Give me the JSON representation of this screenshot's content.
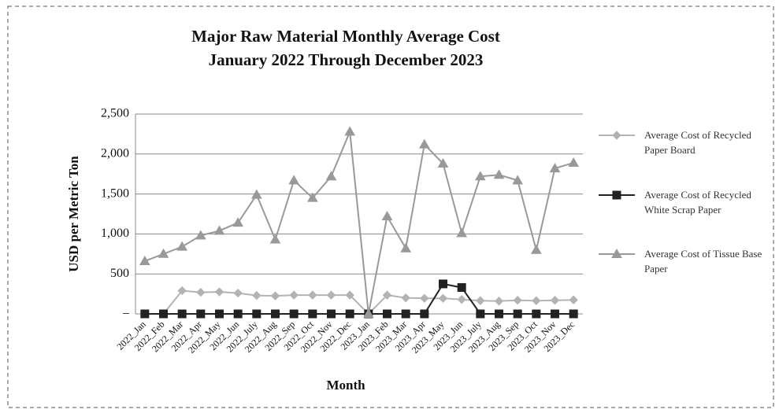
{
  "chart_data": {
    "type": "line",
    "title": "Major Raw Material Monthly Average Cost",
    "subtitle": "January 2022 Through December 2023",
    "x_label": "Month",
    "y_label": "USD per Metric Ton",
    "categories": [
      "2022_Jan",
      "2022_Feb",
      "2022_Mar",
      "2022_Apr",
      "2022_May",
      "2022_Jun",
      "2022_July",
      "2022_Aug",
      "2022_Sep",
      "2022_Oct",
      "2022_Nov",
      "2022_Dec",
      "2023_Jan",
      "2023_Feb",
      "2023_Mar",
      "2023_Apr",
      "2023_May",
      "2023_Jun",
      "2023_July",
      "2023_Aug",
      "2023_Sep",
      "2023_Oct",
      "2023_Nov",
      "2023_Dec"
    ],
    "series": [
      {
        "name": "Average Cost of Recycled Paper Board",
        "color": "#b3b3b3",
        "marker": "diamond",
        "values": [
          0,
          0,
          290,
          270,
          275,
          260,
          230,
          225,
          235,
          235,
          235,
          235,
          0,
          235,
          200,
          195,
          195,
          180,
          165,
          160,
          170,
          165,
          170,
          175
        ]
      },
      {
        "name": "Average Cost of Recycled White Scrap Paper",
        "color": "#222222",
        "marker": "square",
        "values": [
          0,
          0,
          0,
          0,
          0,
          0,
          0,
          0,
          0,
          0,
          0,
          0,
          0,
          0,
          0,
          0,
          375,
          330,
          0,
          0,
          0,
          0,
          0,
          0
        ]
      },
      {
        "name": "Average Cost of Tissue Base Paper",
        "color": "#999999",
        "marker": "triangle",
        "values": [
          660,
          750,
          840,
          980,
          1040,
          1140,
          1490,
          930,
          1670,
          1450,
          1720,
          2280,
          0,
          1220,
          820,
          2120,
          1880,
          1010,
          1720,
          1740,
          1670,
          800,
          1820,
          1890
        ]
      }
    ],
    "ylim": [
      0,
      2500
    ],
    "yticks": [
      {
        "value": 0,
        "label": "–"
      },
      500,
      {
        "value": 1000,
        "label": "1,000"
      },
      {
        "value": 1500,
        "label": "1,500"
      },
      {
        "value": 2000,
        "label": "2,000"
      },
      {
        "value": 2500,
        "label": "2,500"
      }
    ],
    "grid": true,
    "legend": "right"
  }
}
